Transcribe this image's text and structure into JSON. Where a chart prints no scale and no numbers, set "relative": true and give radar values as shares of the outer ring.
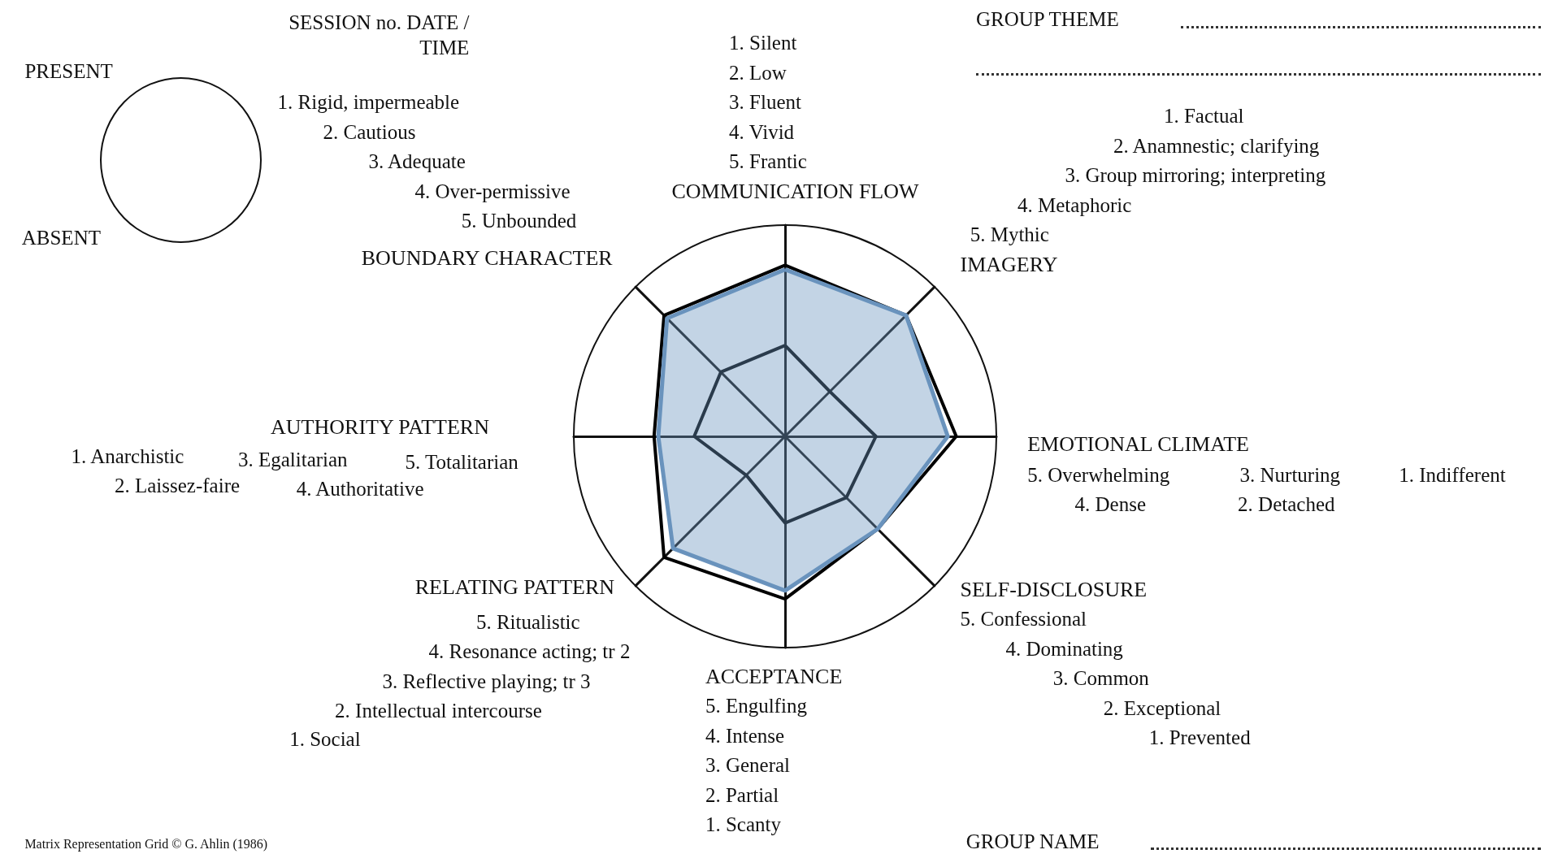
{
  "chart_data": {
    "type": "radar",
    "categories": [
      "COMMUNICATION FLOW",
      "IMAGERY",
      "EMOTIONAL CLIMATE",
      "SELF-DISCLOSURE",
      "ACCEPTANCE",
      "RELATING PATTERN",
      "AUTHORITY PATTERN",
      "BOUNDARY CHARACTER"
    ],
    "series": [
      {
        "color": "#000000",
        "values": [
          0.81,
          0.81,
          0.81,
          0.62,
          0.77,
          0.81,
          0.62,
          0.81
        ]
      },
      {
        "color": "#000000",
        "values": [
          0.43,
          0.3,
          0.43,
          0.41,
          0.41,
          0.26,
          0.43,
          0.43
        ]
      },
      {
        "type": "area",
        "color": "#6a93bd",
        "values": [
          0.79,
          0.81,
          0.77,
          0.62,
          0.73,
          0.75,
          0.6,
          0.79
        ]
      }
    ],
    "relative": true,
    "marker": "none",
    "annotations": [
      "SESSION no. DATE /\nTIME",
      "PRESENT",
      "ABSENT",
      "GROUP THEME",
      "GROUP NAME",
      "Matrix Representation Grid © G. Ahlin (1986)",
      "1. Silent",
      "2. Low",
      "3. Fluent",
      "4. Vivid",
      "5. Frantic",
      "1. Factual",
      "2. Anamnestic; clarifying",
      "3. Group mirroring; interpreting",
      "4. Metaphoric",
      "5. Mythic",
      "5. Overwhelming",
      "3. Nurturing",
      "1. Indifferent",
      "4. Dense",
      "2. Detached",
      "5. Confessional",
      "4. Dominating",
      "3. Common",
      "2. Exceptional",
      "1. Prevented",
      "5. Engulfing",
      "4. Intense",
      "3. General",
      "2. Partial",
      "1. Scanty",
      "5. Ritualistic",
      "4. Resonance acting; tr 2",
      "3. Reflective playing; tr 3",
      "2. Intellectual intercourse",
      "1. Social",
      "1. Anarchistic",
      "3. Egalitarian",
      "5. Totalitarian",
      "2. Laissez-faire",
      "4. Authoritative",
      "1. Rigid, impermeable",
      "2. Cautious",
      "3. Adequate",
      "4. Over-permissive",
      "5. Unbounded"
    ]
  }
}
